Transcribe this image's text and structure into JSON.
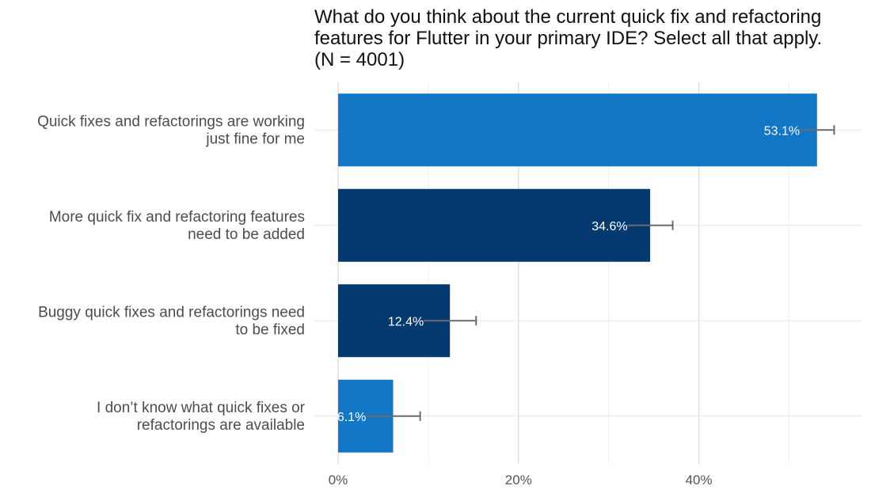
{
  "chart_data": {
    "type": "bar",
    "orientation": "horizontal",
    "title_lines": [
      "What do you think about the current quick fix and refactoring",
      "features for Flutter in your primary IDE? Select all that apply.",
      "(N = 4001)"
    ],
    "categories": [
      [
        "Quick fixes and refactorings are working",
        "just fine for me"
      ],
      [
        "More quick fix and refactoring features",
        "need to be added"
      ],
      [
        "Buggy quick fixes and refactorings need",
        "to be fixed"
      ],
      [
        "I don’t know what quick fixes or",
        "refactorings are available"
      ]
    ],
    "values": [
      53.1,
      34.6,
      12.4,
      6.1
    ],
    "value_labels": [
      "53.1%",
      "34.6%",
      "12.4%",
      "6.1%"
    ],
    "error_upper": [
      55.0,
      37.1,
      15.3,
      9.1
    ],
    "bar_colors": [
      "#1277c6",
      "#043a70",
      "#043a70",
      "#1277c6"
    ],
    "error_bar_color": "#6b6b6b",
    "x_ticks": [
      0,
      20,
      40
    ],
    "x_tick_labels": [
      "0%",
      "20%",
      "40%"
    ],
    "xlim": [
      0,
      58.5
    ],
    "grid": true,
    "legend": "none"
  }
}
